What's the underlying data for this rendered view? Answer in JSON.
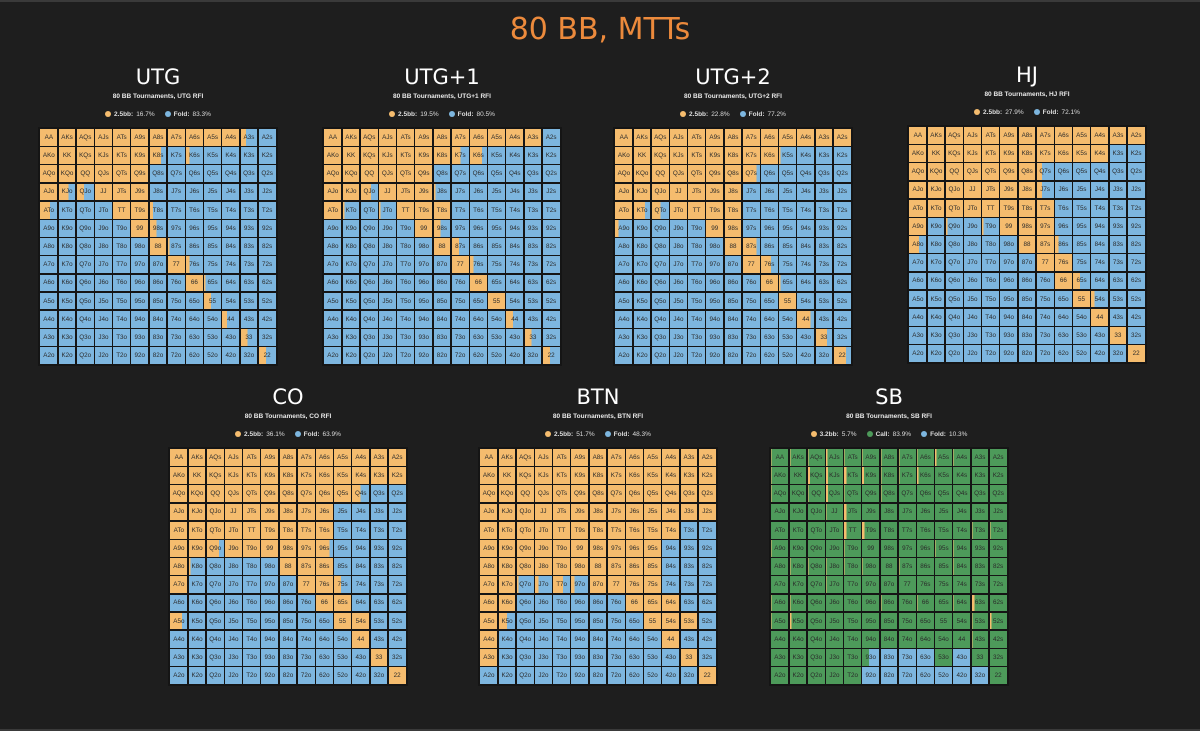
{
  "title": "80 BB, MTTs",
  "colors": {
    "raise": "#f5bc6e",
    "fold": "#7db6df",
    "call": "#4d9a5a",
    "title": "#ec8a3c",
    "background": "#1e1e1e"
  },
  "ranks": [
    "A",
    "K",
    "Q",
    "J",
    "T",
    "9",
    "8",
    "7",
    "6",
    "5",
    "4",
    "3",
    "2"
  ],
  "chart_data": [
    {
      "type": "heatmap",
      "title": "UTG",
      "subtitle": "80 BB Tournaments, UTG RFI",
      "legend": [
        {
          "label": "2.5bb:",
          "value": "16.7%",
          "color": "raise"
        },
        {
          "label": "Fold:",
          "value": "83.3%",
          "color": "fold"
        }
      ],
      "grid": [
        "RRRRRRRRRRR3F",
        "RRRRRR7F2FFFF",
        "RRRRRRFFFFFFF",
        "R64RRRFFFFFFF",
        "6FFFRR2FFFFFF",
        "FFFFFR4FFFFFF",
        "FFFFFFR1FFFFF",
        "FFFFFFFR2FFFF",
        "FFFFFFFFR1FFF",
        "FFFFFFFFF4FFF",
        "FFFFFFFFFF3FF",
        "FFFFFFFFFFF4F",
        "FFFFFFFFFFFF4"
      ]
    },
    {
      "type": "heatmap",
      "title": "UTG+1",
      "subtitle": "80 BB Tournaments, UTG+1 RFI",
      "legend": [
        {
          "label": "2.5bb:",
          "value": "19.5%",
          "color": "raise"
        },
        {
          "label": "Fold:",
          "value": "80.5%",
          "color": "fold"
        }
      ],
      "grid": [
        "RRRRRRRRRRRRF",
        "RRRRRRR57FFFF",
        "RRRRRRFFFFFFF",
        "RR6RRR1FFFFFF",
        "R1F1RRRFFFFFF",
        "FFFFFR4FFFFFF",
        "FFFFFFR4FFFFF",
        "FFFFFFFR2FFFF",
        "FFFFFFFFRFFFF",
        "FFFFFFFFFRFFF",
        "FFFFFFFFFF4FF",
        "FFFFFFFFFFF4F",
        "FFFFFFFFFFFF4"
      ]
    },
    {
      "type": "heatmap",
      "title": "UTG+2",
      "subtitle": "80 BB Tournaments, UTG+2 RFI",
      "legend": [
        {
          "label": "2.5bb:",
          "value": "22.8%",
          "color": "raise"
        },
        {
          "label": "Fold:",
          "value": "77.2%",
          "color": "fold"
        }
      ],
      "grid": [
        "RRRRRRRRRRRRR",
        "RRRRRRRRR1FFF",
        "RRRRRRR8FFFFF",
        "RRRRRRRFFFFFF",
        "R75RRRRFFFFFF",
        "2FFFFRRFFFFFF",
        "FFFFFFR8FFFFF",
        "FFFFFFFR6FFFF",
        "FFFFFFFFR1FFF",
        "FFFFFFFFFRFFF",
        "FFFFFFFFFF8FF",
        "FFFFFFFFFFF7F",
        "FFFFFFFFFFFF7"
      ]
    },
    {
      "type": "heatmap",
      "title": "HJ",
      "subtitle": "80 BB Tournaments, HJ RFI",
      "legend": [
        {
          "label": "2.5bb:",
          "value": "27.9%",
          "color": "raise"
        },
        {
          "label": "Fold:",
          "value": "72.1%",
          "color": "fold"
        }
      ],
      "grid": [
        "RRRRRRRRRRRRR",
        "RRRRRRRRRRRFF",
        "RRRRRRR3FFFFF",
        "RRRRRRR3FFFFF",
        "RRRRRRRRFFFFF",
        "RF1F1RRRFFFFF",
        "6FFFFFRR2FFFF",
        "FFFFFFFRRFFFF",
        "FFFFFFFFR4FFF",
        "FFFFFFFFFR2FF",
        "FFFFFFFFFFRFF",
        "FFFFFFFFFFFRF",
        "FFFFFFFFFFFFR"
      ]
    },
    {
      "type": "heatmap",
      "title": "CO",
      "subtitle": "80 BB Tournaments, CO RFI",
      "legend": [
        {
          "label": "2.5bb:",
          "value": "36.1%",
          "color": "raise"
        },
        {
          "label": "Fold:",
          "value": "63.9%",
          "color": "fold"
        }
      ],
      "grid": [
        "RRRRRRRRRRRRR",
        "RRRRRRRRRRRRR",
        "RRRRRRRRRR5FF",
        "RRRRRRRRRFFFF",
        "RRRRRRRRRFFFF",
        "RR7RRRRR8FFFF",
        "R1FFFFRRRFFFF",
        "RFFFFFFRR4FFF",
        "FFFFFFFFRRFFF",
        "7FFFFFFFFRRFF",
        "FFFFFFFFFFRFF",
        "FFFFFFFFFFFRF",
        "FFFFFFFFFFFFR"
      ]
    },
    {
      "type": "heatmap",
      "title": "BTN",
      "subtitle": "80 BB Tournaments, BTN RFI",
      "legend": [
        {
          "label": "2.5bb:",
          "value": "51.7%",
          "color": "raise"
        },
        {
          "label": "Fold:",
          "value": "48.3%",
          "color": "fold"
        }
      ],
      "grid": [
        "RRRRRRRRRRRRR",
        "RRRRRRRRRRRRR",
        "RRRRRRRRRRRRR",
        "RRRRRRRRRRRRR",
        "RRRRRRRRRRRFF",
        "RRRRRRRRRRFFF",
        "RRRRRRRRRRFFF",
        "RR1262RRRRFFF",
        "RRFFFFFFRRRFF",
        "R5FFFFFFFRRRF",
        "RFFFFFFFFFRFF",
        "RFFFFFFFFFFRF",
        "FFFFFFFFFFFFR"
      ]
    },
    {
      "type": "heatmap",
      "title": "SB",
      "subtitle": "80 BB Tournaments, SB RFI",
      "legend": [
        {
          "label": "3.2bb:",
          "value": "5.7%",
          "color": "raise"
        },
        {
          "label": "Call:",
          "value": "83.9%",
          "color": "call"
        },
        {
          "label": "Fold:",
          "value": "10.3%",
          "color": "fold"
        }
      ],
      "grid": [
        "11121111121CC",
        "1C3343112CCCC",
        "1C131C1CCCCCC",
        "CCC14CCCCCCCC",
        "CCCC44CCCCC11",
        "1CCC1CCCC11CC",
        "C11111C1CC1CC",
        "CCC1CCCCCCCCC",
        "11CCCC1C1C14C",
        "12CCCCCCCCC12",
        "CCCCCCCCCCC1C",
        "CCCCC8FFFCFCC",
        "CCCCCFFFFFFFC"
      ],
      "sb_fold_cells": "x"
    }
  ]
}
